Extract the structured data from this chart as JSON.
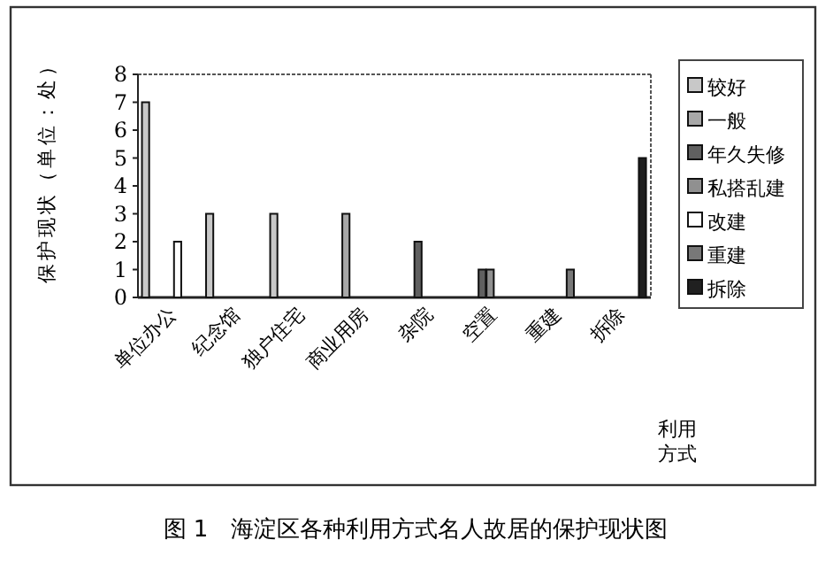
{
  "chart_data": {
    "type": "bar",
    "title": "图 1　海淀区各种利用方式名人故居的保护现状图",
    "xlabel": "利用方式",
    "ylabel": "保护现状（单位：处）",
    "categories": [
      "单位办公",
      "纪念馆",
      "独户住宅",
      "商业用房",
      "杂院",
      "空置",
      "重建",
      "拆除"
    ],
    "series": [
      {
        "name": "较好",
        "color": "#c8c8c8",
        "values": [
          7,
          3,
          3,
          null,
          null,
          null,
          null,
          null
        ]
      },
      {
        "name": "一般",
        "color": "#a8a8a8",
        "values": [
          null,
          null,
          null,
          3,
          null,
          null,
          null,
          null
        ]
      },
      {
        "name": "年久失修",
        "color": "#606060",
        "values": [
          null,
          null,
          null,
          null,
          2,
          1,
          null,
          null
        ]
      },
      {
        "name": "私搭乱建",
        "color": "#909090",
        "values": [
          null,
          null,
          null,
          null,
          null,
          1,
          null,
          null
        ]
      },
      {
        "name": "改建",
        "color": "#ffffff",
        "values": [
          2,
          null,
          null,
          null,
          null,
          null,
          null,
          null
        ]
      },
      {
        "name": "重建",
        "color": "#787878",
        "values": [
          null,
          null,
          null,
          null,
          null,
          null,
          1,
          null
        ]
      },
      {
        "name": "拆除",
        "color": "#202020",
        "values": [
          null,
          null,
          null,
          null,
          null,
          null,
          null,
          5
        ]
      }
    ],
    "ylim": [
      0,
      8
    ],
    "yticks": [
      0,
      1,
      2,
      3,
      4,
      5,
      6,
      7,
      8
    ],
    "legend": "right"
  }
}
